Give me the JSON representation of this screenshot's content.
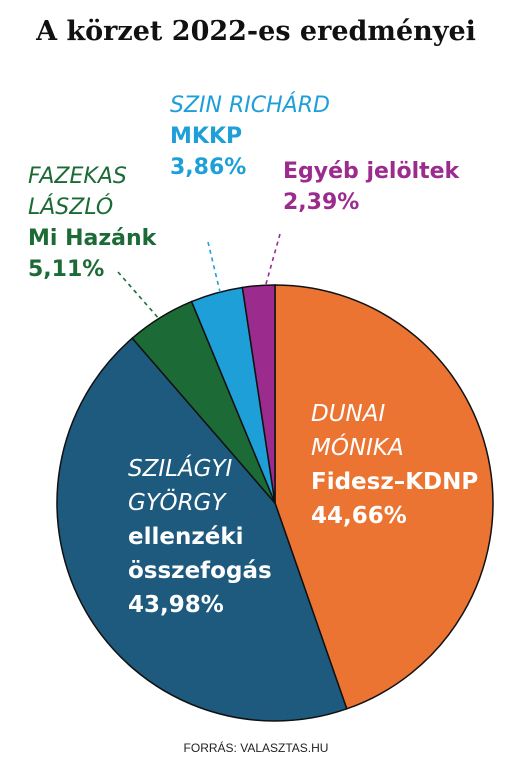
{
  "chart_data": {
    "type": "pie",
    "title": "A körzet 2022-es eredményei",
    "source": "FORRÁS: VALASZTAS.HU",
    "slices": [
      {
        "candidate_lines": [
          "DUNAI",
          "MÓNIKA"
        ],
        "party_lines": [
          "Fidesz–KDNP"
        ],
        "value_label": "44,66%",
        "value": 44.66,
        "color": "#ec7433",
        "text_color": "#ffffff"
      },
      {
        "candidate_lines": [
          "SZILÁGYI",
          "GYÖRGY"
        ],
        "party_lines": [
          "ellenzéki",
          "összefogás"
        ],
        "value_label": "43,98%",
        "value": 43.98,
        "color": "#1d5a7d",
        "text_color": "#ffffff"
      },
      {
        "candidate_lines": [
          "FAZEKAS",
          "LÁSZLÓ"
        ],
        "party_lines": [
          "Mi Hazánk"
        ],
        "value_label": "5,11%",
        "value": 5.11,
        "color": "#1c6b36",
        "text_color": "#1c6b36"
      },
      {
        "candidate_lines": [
          "SZIN RICHÁRD"
        ],
        "party_lines": [
          "MKKP"
        ],
        "value_label": "3,86%",
        "value": 3.86,
        "color": "#1f9fd8",
        "text_color": "#1f9fd8"
      },
      {
        "candidate_lines": [],
        "party_lines": [
          "Egyéb jelöltek"
        ],
        "value_label": "2,39%",
        "value": 2.39,
        "color": "#9b2b8c",
        "text_color": "#9b2b8c"
      }
    ]
  }
}
